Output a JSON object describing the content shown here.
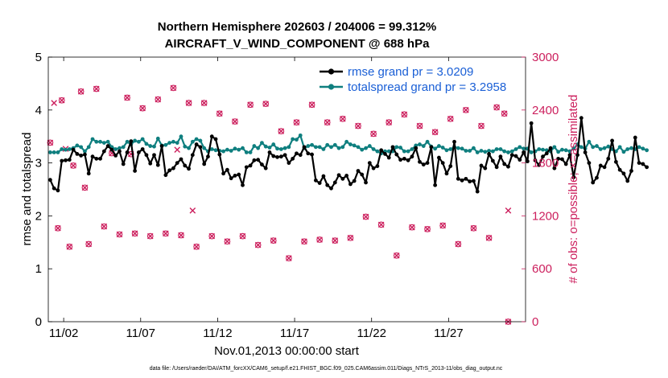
{
  "chart_data": {
    "type": "line",
    "title_line1": "Northern Hemisphere 202603 / 204006 = 99.312%",
    "title_line2": "AIRCRAFT_V_WIND_COMPONENT @ 688 hPa",
    "xlabel": "Nov.01,2013 00:00:00 start",
    "ylabel_left": "rmse and totalspread",
    "ylabel_right": "# of obs: o=possible; ×=assimilated",
    "xlim": [
      1,
      32
    ],
    "ylim_left": [
      0,
      5
    ],
    "ylim_right": [
      0,
      3000
    ],
    "x_ticks": [
      {
        "value": 2,
        "label": "11/02"
      },
      {
        "value": 7,
        "label": "11/07"
      },
      {
        "value": 12,
        "label": "11/12"
      },
      {
        "value": 17,
        "label": "11/17"
      },
      {
        "value": 22,
        "label": "11/22"
      },
      {
        "value": 27,
        "label": "11/27"
      }
    ],
    "y_ticks_left": [
      {
        "value": 0,
        "label": "0"
      },
      {
        "value": 1,
        "label": "1"
      },
      {
        "value": 2,
        "label": "2"
      },
      {
        "value": 3,
        "label": "3"
      },
      {
        "value": 4,
        "label": "4"
      },
      {
        "value": 5,
        "label": "5"
      }
    ],
    "y_ticks_right": [
      {
        "value": 0,
        "label": "0"
      },
      {
        "value": 600,
        "label": "600"
      },
      {
        "value": 1200,
        "label": "1200"
      },
      {
        "value": 1800,
        "label": "1800"
      },
      {
        "value": 2400,
        "label": "2400"
      },
      {
        "value": 3000,
        "label": "3000"
      }
    ],
    "legend_placement": "top-right",
    "x_start": 1.125,
    "x_step": 0.25,
    "series": [
      {
        "name": "rmse grand pr = 3.0209",
        "axis": "left",
        "color": "#000000",
        "values": [
          2.68,
          2.52,
          2.48,
          3.04,
          3.05,
          3.06,
          3.25,
          3.17,
          3.14,
          3.16,
          2.8,
          3.12,
          3.08,
          3.08,
          3.22,
          3.32,
          3.25,
          3.14,
          3.22,
          2.98,
          3.2,
          3.41,
          2.85,
          3.2,
          3.26,
          3.15,
          2.99,
          3.15,
          2.96,
          3.32,
          2.77,
          2.86,
          2.9,
          3.0,
          3.07,
          2.95,
          2.89,
          3.15,
          3.35,
          3.3,
          2.98,
          3.12,
          3.5,
          3.45,
          3.16,
          2.8,
          2.87,
          2.71,
          2.76,
          2.78,
          2.58,
          2.92,
          2.95,
          3.05,
          3.06,
          2.97,
          2.9,
          3.2,
          3.13,
          3.11,
          3.12,
          3.15,
          3.0,
          3.08,
          3.18,
          3.15,
          3.3,
          3.18,
          3.16,
          2.67,
          2.62,
          2.75,
          2.58,
          2.52,
          2.63,
          2.77,
          2.7,
          2.76,
          2.6,
          2.66,
          2.85,
          2.78,
          2.63,
          3.0,
          2.9,
          2.94,
          3.24,
          3.17,
          3.1,
          3.3,
          3.16,
          3.06,
          3.08,
          3.05,
          3.12,
          3.28,
          3.02,
          2.97,
          3.0,
          3.3,
          2.58,
          3.1,
          3.0,
          2.8,
          2.94,
          3.4,
          2.7,
          2.67,
          2.7,
          2.65,
          2.66,
          2.46,
          2.95,
          2.9,
          3.17,
          3.04,
          2.92,
          3.12,
          2.98,
          2.93,
          3.15,
          3.13,
          3.06,
          3.2,
          3.03,
          3.75,
          3.05,
          2.96,
          3.12,
          3.18,
          3.28,
          2.9,
          3.08,
          3.07,
          2.98,
          3.15,
          2.73,
          3.15,
          3.85,
          3.2,
          3.0,
          2.63,
          2.72,
          2.95,
          2.92,
          3.08,
          3.42,
          3.02,
          2.87,
          2.8,
          2.66,
          2.85,
          3.48,
          3.0,
          2.98,
          2.92
        ]
      },
      {
        "name": "totalspread grand pr = 3.2958",
        "axis": "left",
        "color": "#0f7f7f",
        "values": [
          3.2,
          3.2,
          3.2,
          3.26,
          3.25,
          3.26,
          3.28,
          3.33,
          3.3,
          3.22,
          3.3,
          3.45,
          3.4,
          3.4,
          3.38,
          3.4,
          3.3,
          3.26,
          3.28,
          3.3,
          3.4,
          3.35,
          3.42,
          3.4,
          3.45,
          3.36,
          3.32,
          3.31,
          3.46,
          3.33,
          3.34,
          3.38,
          3.4,
          3.38,
          3.5,
          3.31,
          3.28,
          3.4,
          3.45,
          3.42,
          3.28,
          3.22,
          3.26,
          3.24,
          3.23,
          3.22,
          3.25,
          3.23,
          3.27,
          3.25,
          3.28,
          3.2,
          3.2,
          3.32,
          3.28,
          3.38,
          3.31,
          3.29,
          3.35,
          3.27,
          3.26,
          3.28,
          3.3,
          3.45,
          3.44,
          3.52,
          3.28,
          3.32,
          3.34,
          3.3,
          3.3,
          3.26,
          3.34,
          3.3,
          3.34,
          3.28,
          3.3,
          3.4,
          3.35,
          3.33,
          3.3,
          3.25,
          3.28,
          3.32,
          3.26,
          3.22,
          3.18,
          3.22,
          3.22,
          3.22,
          3.3,
          3.29,
          3.22,
          3.22,
          3.26,
          3.33,
          3.35,
          3.32,
          3.4,
          3.31,
          3.27,
          3.32,
          3.29,
          3.24,
          3.26,
          3.3,
          3.28,
          3.27,
          3.23,
          3.23,
          3.28,
          3.2,
          3.23,
          3.21,
          3.23,
          3.22,
          3.26,
          3.26,
          3.22,
          3.2,
          3.22,
          3.26,
          3.3,
          3.27,
          3.27,
          3.2,
          3.22,
          3.26,
          3.25,
          3.24,
          3.22,
          3.3,
          3.21,
          3.25,
          3.24,
          3.22,
          3.27,
          3.35,
          3.3,
          3.27,
          3.4,
          3.3,
          3.32,
          3.26,
          3.28,
          3.31,
          3.26,
          3.22,
          3.3,
          3.21,
          3.26,
          3.28,
          3.26,
          3.3,
          3.27,
          3.24
        ]
      }
    ],
    "obs_possible": {
      "axis": "right",
      "color": "#cc1f5d",
      "points": [
        [
          1.125,
          2030
        ],
        [
          1.625,
          1060
        ],
        [
          1.875,
          2510
        ],
        [
          2.375,
          850
        ],
        [
          2.625,
          1770
        ],
        [
          3.125,
          2610
        ],
        [
          3.375,
          1520
        ],
        [
          3.625,
          880
        ],
        [
          4.125,
          2640
        ],
        [
          4.625,
          1080
        ],
        [
          5.125,
          1910
        ],
        [
          5.625,
          990
        ],
        [
          6.125,
          2540
        ],
        [
          6.375,
          1900
        ],
        [
          6.625,
          1000
        ],
        [
          7.125,
          2420
        ],
        [
          7.625,
          970
        ],
        [
          8.125,
          2520
        ],
        [
          8.625,
          1000
        ],
        [
          9.125,
          2650
        ],
        [
          9.625,
          980
        ],
        [
          10.125,
          2480
        ],
        [
          10.625,
          850
        ],
        [
          11.125,
          2480
        ],
        [
          11.625,
          970
        ],
        [
          12.125,
          2360
        ],
        [
          12.625,
          910
        ],
        [
          13.125,
          2270
        ],
        [
          13.625,
          970
        ],
        [
          14.125,
          2460
        ],
        [
          14.625,
          870
        ],
        [
          15.125,
          2470
        ],
        [
          15.625,
          920
        ],
        [
          16.125,
          2160
        ],
        [
          16.625,
          720
        ],
        [
          17.125,
          2260
        ],
        [
          17.625,
          910
        ],
        [
          18.125,
          2460
        ],
        [
          18.625,
          930
        ],
        [
          19.125,
          2260
        ],
        [
          19.625,
          920
        ],
        [
          20.125,
          2300
        ],
        [
          20.625,
          950
        ],
        [
          21.125,
          2220
        ],
        [
          21.625,
          1190
        ],
        [
          22.125,
          2130
        ],
        [
          22.625,
          1100
        ],
        [
          23.125,
          2260
        ],
        [
          23.625,
          750
        ],
        [
          24.125,
          2350
        ],
        [
          24.625,
          1070
        ],
        [
          25.125,
          2220
        ],
        [
          25.625,
          1050
        ],
        [
          26.125,
          2150
        ],
        [
          26.625,
          1090
        ],
        [
          27.125,
          2300
        ],
        [
          27.625,
          880
        ],
        [
          28.125,
          2400
        ],
        [
          28.625,
          1060
        ],
        [
          29.125,
          2220
        ],
        [
          29.625,
          950
        ],
        [
          30.125,
          2430
        ],
        [
          30.625,
          2360
        ],
        [
          30.875,
          0
        ]
      ]
    },
    "obs_assimilated": {
      "axis": "right",
      "color": "#cc1f5d",
      "points": [
        [
          1.125,
          2030
        ],
        [
          1.375,
          2480
        ],
        [
          1.625,
          1060
        ],
        [
          1.875,
          2510
        ],
        [
          2.125,
          1960
        ],
        [
          2.375,
          850
        ],
        [
          2.625,
          1770
        ],
        [
          3.125,
          2610
        ],
        [
          3.375,
          1520
        ],
        [
          3.625,
          880
        ],
        [
          4.125,
          2640
        ],
        [
          4.625,
          1080
        ],
        [
          5.125,
          1910
        ],
        [
          5.625,
          990
        ],
        [
          6.125,
          2540
        ],
        [
          6.375,
          1900
        ],
        [
          6.625,
          1000
        ],
        [
          7.125,
          2420
        ],
        [
          7.625,
          970
        ],
        [
          8.125,
          2520
        ],
        [
          8.625,
          1000
        ],
        [
          9.125,
          2650
        ],
        [
          9.375,
          1950
        ],
        [
          9.625,
          980
        ],
        [
          10.125,
          2480
        ],
        [
          10.375,
          1260
        ],
        [
          10.625,
          850
        ],
        [
          11.125,
          2480
        ],
        [
          11.625,
          970
        ],
        [
          12.125,
          2360
        ],
        [
          12.625,
          910
        ],
        [
          13.125,
          2270
        ],
        [
          13.625,
          970
        ],
        [
          14.125,
          2460
        ],
        [
          14.625,
          870
        ],
        [
          15.125,
          2470
        ],
        [
          15.625,
          920
        ],
        [
          16.125,
          2160
        ],
        [
          16.625,
          720
        ],
        [
          17.125,
          2260
        ],
        [
          17.625,
          910
        ],
        [
          18.125,
          2460
        ],
        [
          18.625,
          930
        ],
        [
          19.125,
          2260
        ],
        [
          19.625,
          920
        ],
        [
          20.125,
          2300
        ],
        [
          20.625,
          950
        ],
        [
          21.125,
          2220
        ],
        [
          21.625,
          1190
        ],
        [
          22.125,
          2130
        ],
        [
          22.625,
          1100
        ],
        [
          23.125,
          2260
        ],
        [
          23.625,
          750
        ],
        [
          24.125,
          2350
        ],
        [
          24.625,
          1070
        ],
        [
          25.125,
          2220
        ],
        [
          25.625,
          1050
        ],
        [
          26.125,
          2150
        ],
        [
          26.625,
          1090
        ],
        [
          27.125,
          2300
        ],
        [
          27.625,
          880
        ],
        [
          28.125,
          2400
        ],
        [
          28.625,
          1060
        ],
        [
          29.125,
          2220
        ],
        [
          29.625,
          950
        ],
        [
          30.125,
          2430
        ],
        [
          30.625,
          2360
        ],
        [
          30.875,
          0
        ],
        [
          30.875,
          1260
        ]
      ]
    }
  },
  "footer": {
    "data_file": "data file: /Users/raeder/DAI/ATM_forcXX/CAM6_setup/f.e21.FHIST_BGC.f09_025.CAM6assim.011/Diags_NTrS_2013-11/obs_diag_output.nc"
  }
}
